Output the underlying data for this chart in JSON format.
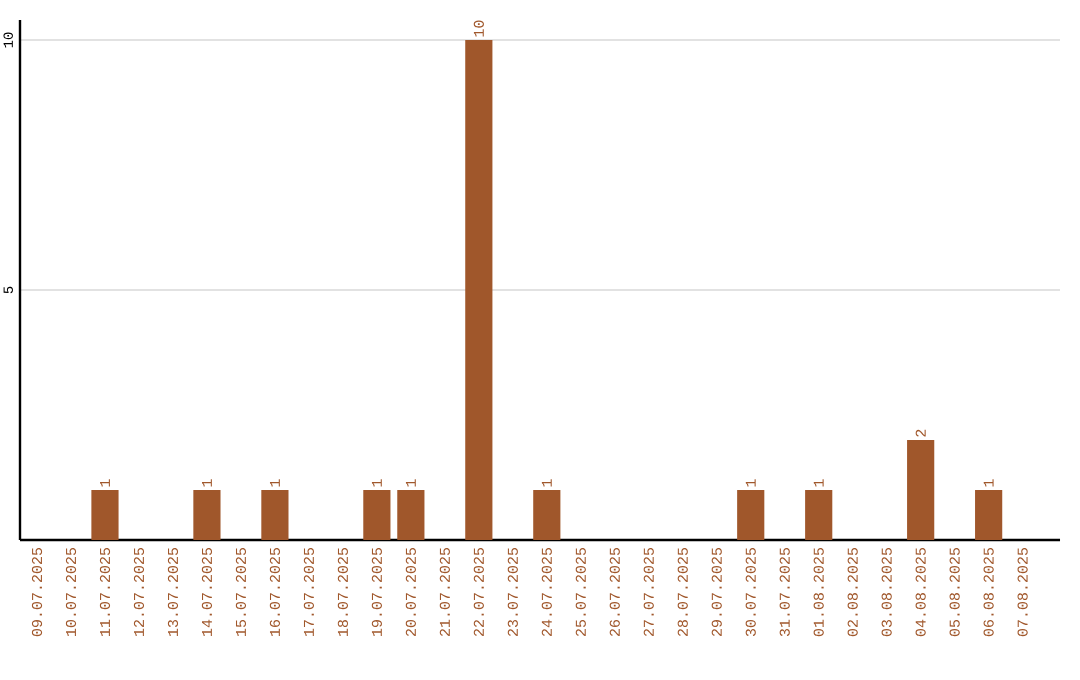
{
  "chart_data": {
    "type": "bar",
    "categories": [
      "09.07.2025",
      "10.07.2025",
      "11.07.2025",
      "12.07.2025",
      "13.07.2025",
      "14.07.2025",
      "15.07.2025",
      "16.07.2025",
      "17.07.2025",
      "18.07.2025",
      "19.07.2025",
      "20.07.2025",
      "21.07.2025",
      "22.07.2025",
      "23.07.2025",
      "24.07.2025",
      "25.07.2025",
      "26.07.2025",
      "27.07.2025",
      "28.07.2025",
      "29.07.2025",
      "30.07.2025",
      "31.07.2025",
      "01.08.2025",
      "02.08.2025",
      "03.08.2025",
      "04.08.2025",
      "05.08.2025",
      "06.08.2025",
      "07.08.2025"
    ],
    "values": [
      0,
      0,
      1,
      0,
      0,
      1,
      0,
      1,
      0,
      0,
      1,
      1,
      0,
      10,
      0,
      1,
      0,
      0,
      0,
      0,
      0,
      1,
      0,
      1,
      0,
      0,
      2,
      0,
      1,
      0
    ],
    "value_labels": [
      null,
      null,
      "1",
      null,
      null,
      "1",
      null,
      "1",
      null,
      null,
      "1",
      "1",
      null,
      "10",
      null,
      "1",
      null,
      null,
      null,
      null,
      null,
      "1",
      null,
      "1",
      null,
      null,
      "2",
      null,
      "1",
      null
    ],
    "color": "#a0572b",
    "ylim": [
      0,
      10.4
    ],
    "yticks": [
      5,
      10
    ],
    "grid": "y"
  }
}
